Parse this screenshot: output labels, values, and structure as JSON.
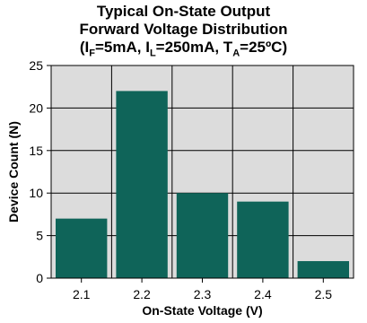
{
  "chart_data": {
    "type": "bar",
    "title": {
      "line1": "Typical On-State Output",
      "line2": "Forward Voltage Distribution",
      "line3": {
        "open": "(I",
        "sub1": "F",
        "part2": "=5mA, I",
        "sub2": "L",
        "part3": "=250mA, T",
        "sub3": "A",
        "part4": "=25ºC)"
      }
    },
    "xlabel": "On-State Voltage (V)",
    "ylabel": "Device Count (N)",
    "categories": [
      "2.1",
      "2.2",
      "2.3",
      "2.4",
      "2.5"
    ],
    "values": [
      7,
      22,
      10,
      9,
      2
    ],
    "ylim": [
      0,
      25
    ],
    "yticks": [
      "0",
      "5",
      "10",
      "15",
      "20",
      "25"
    ],
    "grid": true,
    "bar_color": "#0f6459",
    "plot_background": "#dcdcdc"
  }
}
